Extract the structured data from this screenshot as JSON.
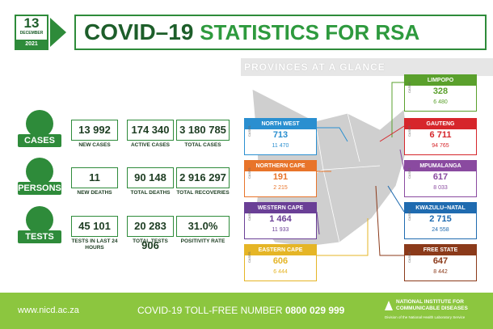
{
  "date": {
    "day": "13",
    "month": "DECEMBER",
    "year": "2021"
  },
  "header": {
    "title_main": "COVID–19",
    "title_sub": "STATISTICS FOR RSA"
  },
  "sections": [
    {
      "label": "CASES",
      "items": [
        {
          "value": "13 992",
          "label": "NEW CASES"
        },
        {
          "value": "174 340",
          "label": "ACTIVE CASES"
        },
        {
          "value": "3 180 785",
          "label": "TOTAL CASES"
        }
      ]
    },
    {
      "label": "PERSONS",
      "items": [
        {
          "value": "11",
          "label": "NEW DEATHS"
        },
        {
          "value": "90 148",
          "label": "TOTAL DEATHS"
        },
        {
          "value": "2 916 297",
          "label": "TOTAL RECOVERIES"
        }
      ]
    },
    {
      "label": "TESTS",
      "items": [
        {
          "value": "45 101",
          "label": "TESTS IN LAST 24 HOURS"
        },
        {
          "value": "20 283 906",
          "label": "TOTAL TESTS"
        },
        {
          "value": "31.0%",
          "label": "POSITIVITY RATE"
        }
      ]
    }
  ],
  "provinces_heading": "PROVINCES AT A GLANCE",
  "provinces": [
    {
      "name": "NORTH WEST",
      "cases_label": "CASES",
      "new": "713",
      "total": "11 470"
    },
    {
      "name": "NORTHERN CAPE",
      "cases_label": "CASES",
      "new": "191",
      "total": "2 215"
    },
    {
      "name": "WESTERN CAPE",
      "cases_label": "CASES",
      "new": "1 464",
      "total": "11 933"
    },
    {
      "name": "EASTERN CAPE",
      "cases_label": "CASES",
      "new": "606",
      "total": "6 444"
    },
    {
      "name": "LIMPOPO",
      "cases_label": "CASES",
      "new": "328",
      "total": "6 480"
    },
    {
      "name": "GAUTENG",
      "cases_label": "CASES",
      "new": "6 711",
      "total": "94 765"
    },
    {
      "name": "MPUMALANGA",
      "cases_label": "CASES",
      "new": "617",
      "total": "8 033"
    },
    {
      "name": "KWAZULU–NATAL",
      "cases_label": "CASES",
      "new": "2 715",
      "total": "24 558"
    },
    {
      "name": "FREE STATE",
      "cases_label": "CASES",
      "new": "647",
      "total": "8 442"
    }
  ],
  "footer": {
    "website": "www.nicd.ac.za",
    "toll_free_label": "COVID-19 TOLL-FREE NUMBER",
    "toll_free_number": "0800 029 999",
    "org_line1": "NATIONAL INSTITUTE FOR",
    "org_line2": "COMMUNICABLE DISEASES",
    "org_division": "Division of the National Health Laboratory Service"
  }
}
